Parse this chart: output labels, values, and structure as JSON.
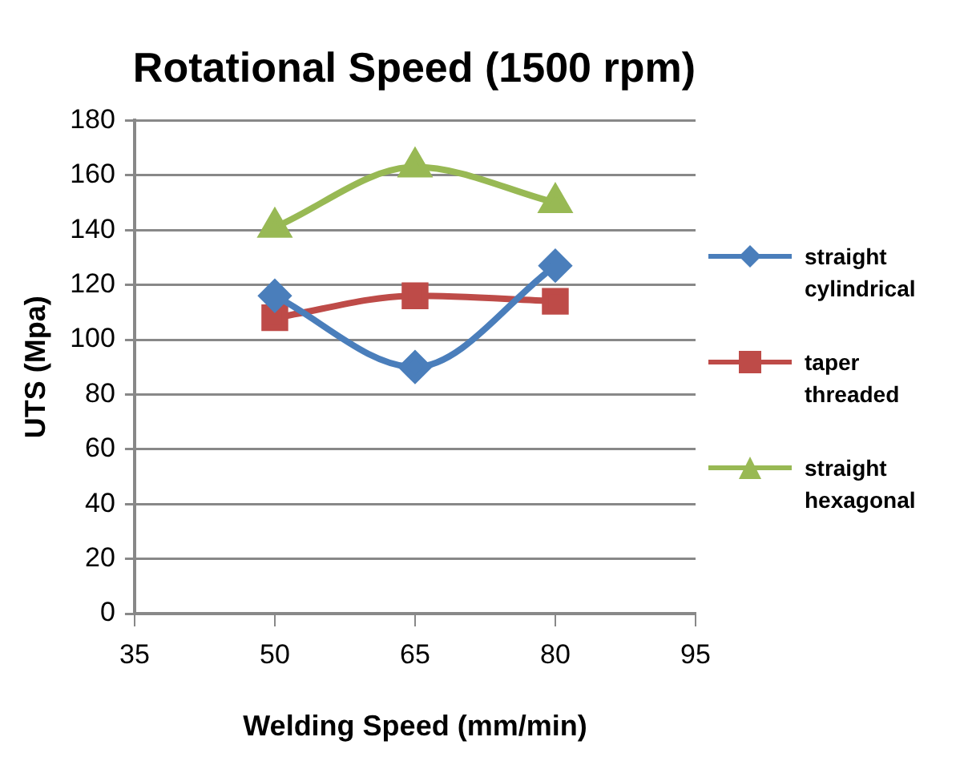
{
  "chart_data": {
    "type": "line",
    "title": "Rotational Speed (1500 rpm)",
    "xlabel": "Welding Speed (mm/min)",
    "ylabel": "UTS (Mpa)",
    "x": [
      50,
      65,
      80
    ],
    "xlim": [
      35,
      95
    ],
    "xticks": [
      35,
      50,
      65,
      80,
      95
    ],
    "ylim": [
      0,
      180
    ],
    "yticks": [
      0,
      20,
      40,
      60,
      80,
      100,
      120,
      140,
      160,
      180
    ],
    "grid": "y",
    "legend": "right",
    "series": [
      {
        "name": "straight cylindrical",
        "color": "#4a7ebb",
        "marker": "diamond",
        "values": [
          116,
          90,
          127
        ]
      },
      {
        "name": "taper threaded",
        "color": "#be4b48",
        "marker": "square",
        "values": [
          108,
          116,
          114
        ]
      },
      {
        "name": "straight hexagonal",
        "color": "#98b954",
        "marker": "triangle",
        "values": [
          141,
          163,
          150
        ]
      }
    ]
  }
}
